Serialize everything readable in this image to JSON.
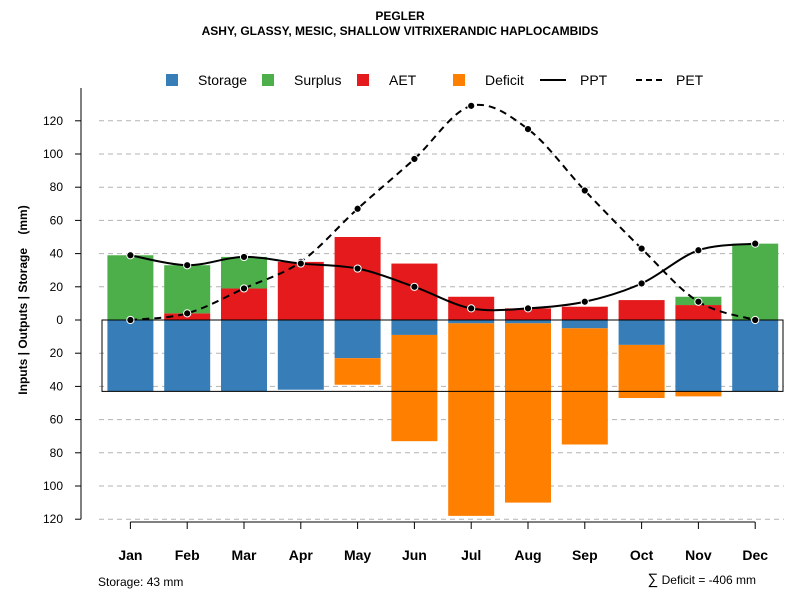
{
  "title": "PEGLER",
  "subtitle": "ASHY, GLASSY, MESIC, SHALLOW VITRIXERANDIC HAPLOCAMBIDS",
  "footer": {
    "storage_text": "Storage: 43 mm",
    "sigma_symbol": "∑",
    "deficit_text": "Deficit = -406 mm"
  },
  "legend": [
    {
      "label": "Storage",
      "kind": "box",
      "color": "#377EB8"
    },
    {
      "label": "Surplus",
      "kind": "box",
      "color": "#4DAF4A"
    },
    {
      "label": "AET",
      "kind": "box",
      "color": "#E41A1C"
    },
    {
      "label": "Deficit",
      "kind": "box",
      "color": "#FF7F00"
    },
    {
      "label": "PPT",
      "kind": "line",
      "color": "#000000"
    },
    {
      "label": "PET",
      "kind": "dash",
      "color": "#000000"
    }
  ],
  "chart_data": {
    "type": "bar",
    "ylabel": "Inputs | Outputs | Storage    (mm)",
    "ylim": [
      -120,
      130
    ],
    "yticks": [
      120,
      100,
      80,
      60,
      40,
      20,
      0,
      20,
      40,
      60,
      80,
      100,
      120
    ],
    "categories": [
      "Jan",
      "Feb",
      "Mar",
      "Apr",
      "May",
      "Jun",
      "Jul",
      "Aug",
      "Sep",
      "Oct",
      "Nov",
      "Dec"
    ],
    "storage_capacity": 43,
    "series": [
      {
        "name": "AET",
        "color": "#E41A1C",
        "values": [
          0,
          4,
          19,
          35,
          50,
          34,
          14,
          7,
          8,
          12,
          9,
          0
        ]
      },
      {
        "name": "Surplus",
        "color": "#4DAF4A",
        "values": [
          39,
          29,
          19,
          0,
          0,
          0,
          0,
          0,
          0,
          0,
          5,
          46
        ]
      },
      {
        "name": "Storage",
        "color": "#377EB8",
        "values": [
          43,
          43,
          43,
          42,
          23,
          9,
          2,
          2,
          5,
          15,
          43,
          43
        ]
      },
      {
        "name": "Deficit",
        "color": "#FF7F00",
        "values": [
          0,
          0,
          0,
          0,
          -16,
          -64,
          -116,
          -108,
          -70,
          -32,
          -3,
          0
        ]
      },
      {
        "name": "PPT",
        "color": "#000000",
        "values": [
          39,
          33,
          38,
          34,
          31,
          20,
          7,
          7,
          11,
          22,
          42,
          46
        ]
      },
      {
        "name": "PET",
        "color": "#000000",
        "values": [
          0,
          4,
          19,
          35,
          67,
          97,
          129,
          115,
          78,
          43,
          11,
          0
        ]
      }
    ]
  }
}
